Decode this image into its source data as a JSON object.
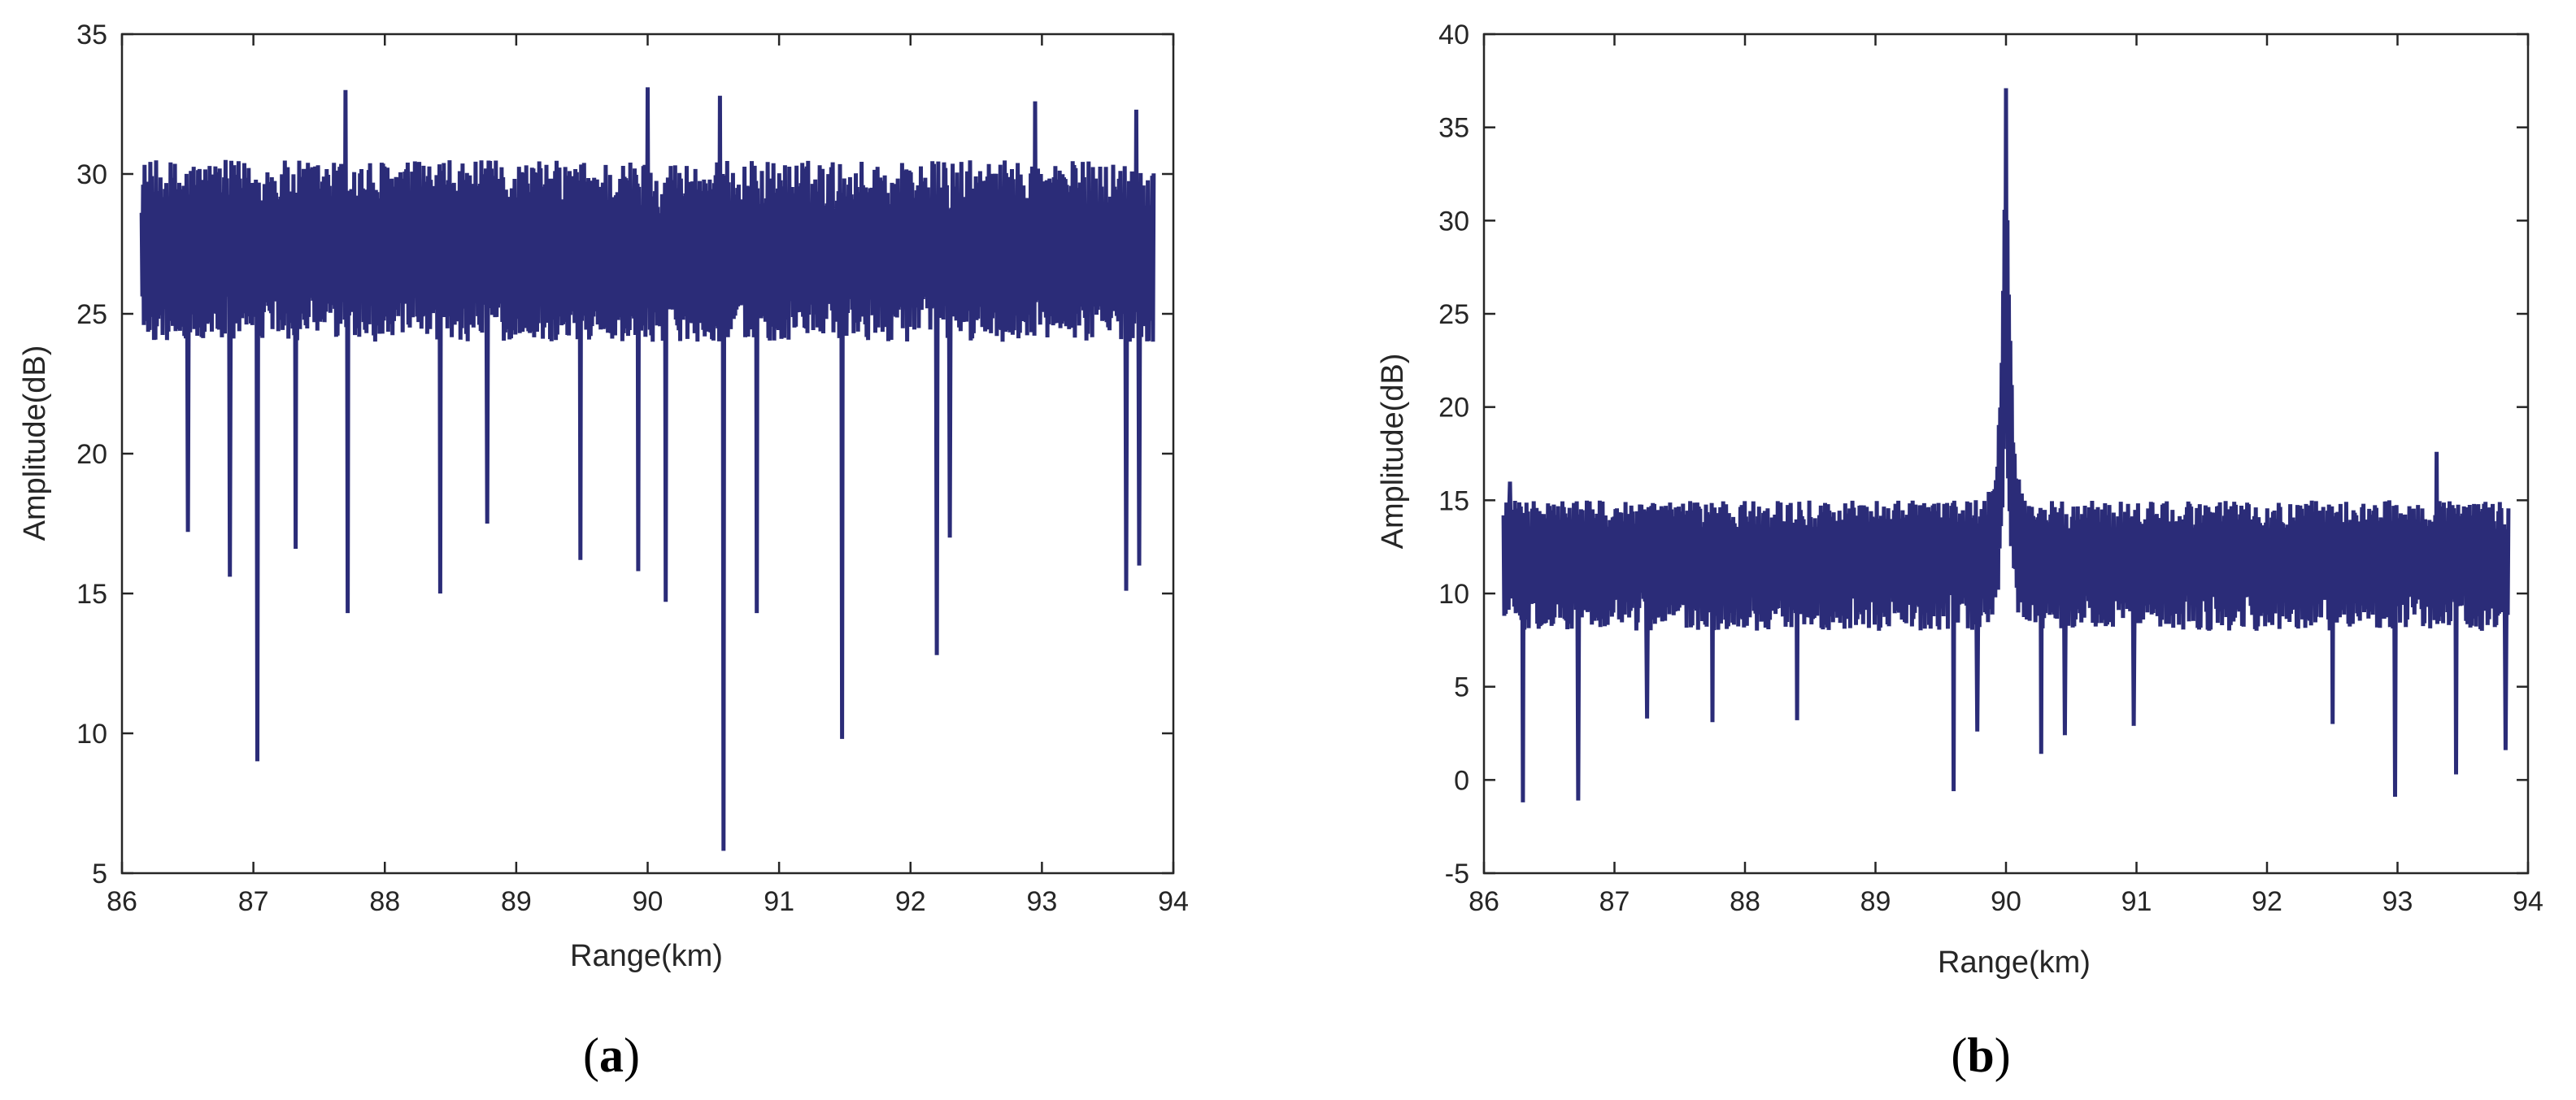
{
  "chart_data": [
    {
      "type": "line",
      "panel_label": "a",
      "xlabel": "Range(km)",
      "ylabel": "Amplitude(dB)",
      "xlim": [
        86,
        94
      ],
      "ylim": [
        5,
        35
      ],
      "xticks": [
        86,
        87,
        88,
        89,
        90,
        91,
        92,
        93,
        94
      ],
      "yticks": [
        5,
        10,
        15,
        20,
        25,
        30,
        35
      ],
      "grid": false,
      "line_color": "#2b2c78",
      "x_range": [
        86.15,
        93.85
      ],
      "baseline_mean": 27.0,
      "typical_max": 30.5,
      "typical_min": 24.0,
      "peaks": [
        {
          "x": 87.7,
          "y": 33.0
        },
        {
          "x": 90.0,
          "y": 33.1
        },
        {
          "x": 90.55,
          "y": 32.8
        },
        {
          "x": 92.95,
          "y": 32.6
        },
        {
          "x": 93.72,
          "y": 32.3
        }
      ],
      "dips": [
        {
          "x": 86.5,
          "y": 17.2
        },
        {
          "x": 86.82,
          "y": 15.6
        },
        {
          "x": 87.03,
          "y": 9.0
        },
        {
          "x": 87.32,
          "y": 16.6
        },
        {
          "x": 87.72,
          "y": 14.3
        },
        {
          "x": 88.42,
          "y": 15.0
        },
        {
          "x": 88.78,
          "y": 17.5
        },
        {
          "x": 89.49,
          "y": 16.2
        },
        {
          "x": 89.93,
          "y": 15.8
        },
        {
          "x": 90.14,
          "y": 14.7
        },
        {
          "x": 90.58,
          "y": 5.8
        },
        {
          "x": 90.83,
          "y": 14.3
        },
        {
          "x": 91.48,
          "y": 9.8
        },
        {
          "x": 92.2,
          "y": 12.8
        },
        {
          "x": 92.3,
          "y": 17.0
        },
        {
          "x": 93.64,
          "y": 15.1
        },
        {
          "x": 93.74,
          "y": 16.0
        }
      ]
    },
    {
      "type": "line",
      "panel_label": "b",
      "xlabel": "Range(km)",
      "ylabel": "Amplitude(dB)",
      "xlim": [
        86,
        94
      ],
      "ylim": [
        -5,
        40
      ],
      "xticks": [
        86,
        87,
        88,
        89,
        90,
        91,
        92,
        93,
        94
      ],
      "yticks": [
        -5,
        0,
        5,
        10,
        15,
        20,
        25,
        30,
        35,
        40
      ],
      "grid": false,
      "line_color": "#2b2c78",
      "x_range": [
        86.15,
        93.85
      ],
      "baseline_mean": 12.0,
      "typical_max": 15.0,
      "typical_min": 8.0,
      "target_peak": {
        "x": 90.0,
        "y": 37.1
      },
      "peaks": [
        {
          "x": 86.2,
          "y": 16.0
        },
        {
          "x": 93.3,
          "y": 17.6
        }
      ],
      "dips": [
        {
          "x": 86.3,
          "y": -1.2
        },
        {
          "x": 86.72,
          "y": -1.1
        },
        {
          "x": 87.25,
          "y": 3.3
        },
        {
          "x": 87.75,
          "y": 3.1
        },
        {
          "x": 88.4,
          "y": 3.2
        },
        {
          "x": 89.6,
          "y": -0.6
        },
        {
          "x": 89.78,
          "y": 2.6
        },
        {
          "x": 90.27,
          "y": 1.4
        },
        {
          "x": 90.45,
          "y": 2.4
        },
        {
          "x": 90.98,
          "y": 2.9
        },
        {
          "x": 92.5,
          "y": 3.0
        },
        {
          "x": 92.98,
          "y": -0.9
        },
        {
          "x": 93.45,
          "y": 0.3
        },
        {
          "x": 93.83,
          "y": 1.6
        }
      ]
    }
  ]
}
